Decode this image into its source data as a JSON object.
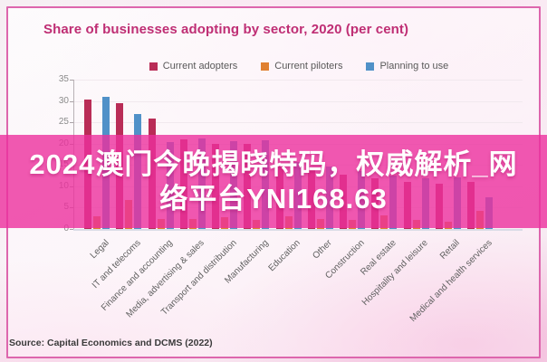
{
  "header": {
    "title": "Share of businesses adopting by sector, 2020 (per cent)"
  },
  "legend": [
    {
      "label": "Current adopters",
      "color": "#b92d57"
    },
    {
      "label": "Current piloters",
      "color": "#e08030"
    },
    {
      "label": "Planning to use",
      "color": "#5091c8"
    }
  ],
  "overlay": {
    "line1": "2024澳门今晚揭晓特码，权威解析_网",
    "line2": "络平台YNI168.63"
  },
  "source": {
    "text": "Source: Capital Economics and DCMS (2022)"
  },
  "colors": {
    "frame_border": "#dd66ad",
    "title_text": "#bf2e74",
    "overlay_band": "#ec2f9d",
    "overlay_text": "#ffffff"
  },
  "chart_data": {
    "type": "bar",
    "title": "Share of businesses adopting by sector, 2020 (per cent)",
    "xlabel": "",
    "ylabel": "",
    "ylim": [
      0,
      35
    ],
    "yticks": [
      0,
      5,
      10,
      15,
      20,
      25,
      30,
      35
    ],
    "grid": true,
    "legend_position": "top",
    "categories": [
      "Legal",
      "IT and telecoms",
      "Finance and accounting",
      "Media, advertising & sales",
      "Transport and distribution",
      "Manufacturing",
      "Education",
      "Other",
      "Construction",
      "Real estate",
      "Hospitality and leisure",
      "Retail",
      "Medical and health services"
    ],
    "series": [
      {
        "name": "Current adopters",
        "color": "#b92d57",
        "values": [
          30.3,
          29.4,
          25.9,
          21.0,
          20.0,
          20.0,
          15.0,
          13.8,
          12.7,
          11.8,
          11.1,
          10.7,
          11.0
        ]
      },
      {
        "name": "Current piloters",
        "color": "#e08030",
        "values": [
          2.9,
          6.8,
          2.3,
          2.4,
          2.7,
          2.2,
          2.9,
          2.4,
          2.1,
          3.2,
          2.1,
          1.7,
          4.2
        ]
      },
      {
        "name": "Planning to use",
        "color": "#5091c8",
        "values": [
          30.9,
          27.0,
          20.3,
          21.3,
          20.6,
          20.7,
          15.7,
          14.6,
          13.6,
          12.6,
          11.9,
          12.0,
          7.4
        ]
      }
    ]
  }
}
